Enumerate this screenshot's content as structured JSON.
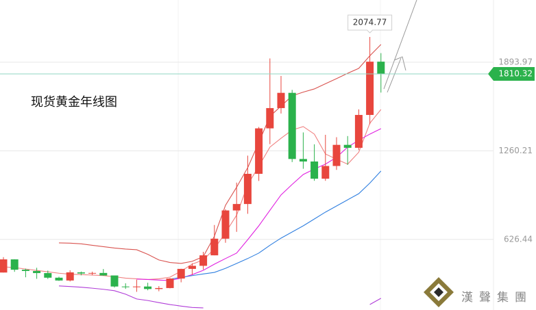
{
  "chart_data": {
    "type": "candlestick",
    "title": "现货黄金年线图",
    "watermark": "漢聲集團",
    "up_color": "#e8463d",
    "down_color": "#2bb24c",
    "grid": true,
    "ylim": [
      122,
      2339
    ],
    "yticks": [
      626.44,
      1260.21,
      1893.97
    ],
    "categories": [
      null,
      null,
      null,
      null,
      null,
      null,
      null,
      null,
      null,
      null,
      null,
      null,
      null,
      null,
      null,
      null,
      null,
      null,
      null,
      null,
      null,
      null,
      null,
      null,
      null,
      null,
      null,
      null,
      null,
      null,
      null,
      null,
      null,
      null,
      null
    ],
    "open": [
      390,
      484,
      410,
      401,
      386,
      353,
      333,
      391,
      383,
      387,
      369,
      290,
      288,
      290,
      272,
      279,
      347,
      416,
      438,
      513,
      632,
      834,
      880,
      1096,
      1421,
      1566,
      1675,
      1202,
      1184,
      1061,
      1152,
      1303,
      1282,
      1517,
      1898
    ],
    "high": [
      500,
      485,
      418,
      424,
      404,
      360,
      406,
      397,
      396,
      415,
      367,
      313,
      339,
      317,
      293,
      350,
      417,
      456,
      538,
      730,
      842,
      1033,
      1226,
      1431,
      1921,
      1796,
      1696,
      1392,
      1307,
      1375,
      1358,
      1366,
      1557,
      2074.77,
      1959
    ],
    "low": [
      390,
      395,
      356,
      345,
      344,
      330,
      326,
      370,
      372,
      367,
      283,
      273,
      252,
      263,
      256,
      277,
      320,
      374,
      411,
      513,
      603,
      681,
      810,
      1045,
      1308,
      1527,
      1180,
      1132,
      1046,
      1046,
      1124,
      1160,
      1266,
      1451,
      1677
    ],
    "close": [
      484,
      410,
      401,
      386,
      353,
      333,
      391,
      383,
      387,
      369,
      290,
      288,
      290,
      272,
      279,
      347,
      416,
      438,
      513,
      632,
      834,
      880,
      1096,
      1421,
      1566,
      1675,
      1202,
      1184,
      1061,
      1152,
      1303,
      1282,
      1517,
      1898,
      1810.32
    ],
    "series": [
      {
        "name": null,
        "color": "#d9534f",
        "values": [
          null,
          null,
          null,
          null,
          null,
          602,
          600,
          595,
          585,
          575,
          565,
          558,
          553,
          520,
          480,
          462,
          455,
          470,
          504,
          650,
          871,
          1000,
          1140,
          1320,
          1507,
          1580,
          1654,
          1680,
          1703,
          1740,
          1777,
          1815,
          1850,
          1940,
          2021
        ]
      },
      {
        "name": null,
        "color": "#f08080",
        "values": [
          431,
          425,
          415,
          405,
          395,
          385,
          378,
          375,
          372,
          368,
          360,
          350,
          345,
          340,
          345,
          357,
          400,
          450,
          480,
          560,
          675,
          800,
          1018,
          1150,
          1287,
          1350,
          1409,
          1434,
          1380,
          1238,
          1200,
          1165,
          1250,
          1458,
          1556
        ]
      },
      {
        "name": null,
        "color": "#e020e0",
        "values": [
          null,
          null,
          null,
          null,
          null,
          null,
          null,
          null,
          null,
          null,
          null,
          null,
          343,
          340,
          336,
          333,
          350,
          375,
          406,
          450,
          490,
          529,
          625,
          724,
          835,
          945,
          1020,
          1091,
          1130,
          1165,
          1214,
          1287,
          1336,
          1380,
          1419
        ]
      },
      {
        "name": null,
        "color": "#2f7fe0",
        "values": [
          null,
          null,
          null,
          null,
          null,
          null,
          null,
          null,
          null,
          null,
          null,
          null,
          null,
          null,
          null,
          343,
          355,
          368,
          380,
          391,
          420,
          455,
          490,
          529,
          585,
          636,
          680,
          724,
          773,
          822,
          866,
          910,
          954,
          1030,
          1116
        ]
      },
      {
        "name": null,
        "color": "#b03cd8",
        "values": [
          null,
          null,
          null,
          null,
          null,
          294,
          290,
          285,
          278,
          270,
          260,
          235,
          201,
          190,
          175,
          161,
          150,
          140,
          137,
          null,
          null,
          null,
          null,
          null,
          null,
          null,
          null,
          null,
          null,
          null,
          null,
          null,
          null,
          161,
          206
        ]
      }
    ]
  }
}
